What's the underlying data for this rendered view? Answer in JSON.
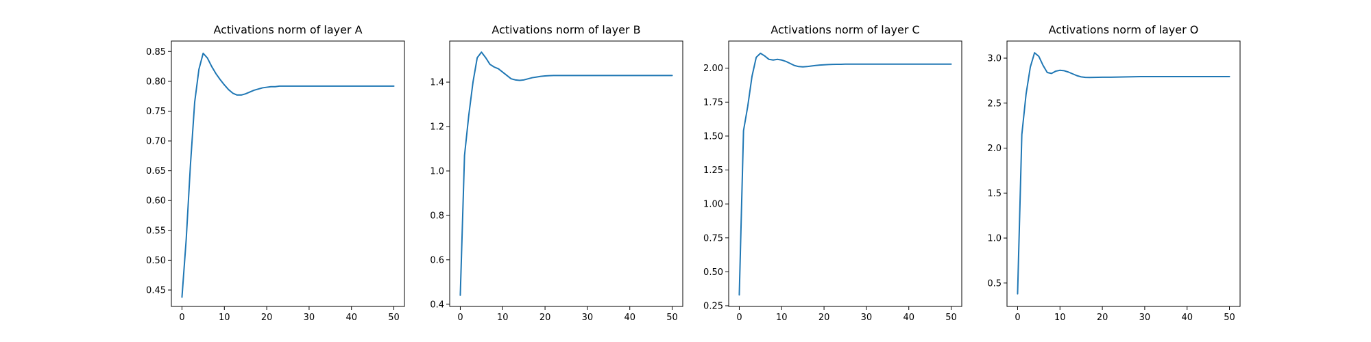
{
  "colors": {
    "line": "#1f77b4"
  },
  "chart_data": [
    {
      "type": "line",
      "title": "Activations norm of layer A",
      "xlabel": "",
      "ylabel": "",
      "xlim": [
        -2.5,
        52.5
      ],
      "ylim": [
        0.4225,
        0.8675
      ],
      "xticks": [
        0,
        10,
        20,
        30,
        40,
        50
      ],
      "xtick_labels": [
        "0",
        "10",
        "20",
        "30",
        "40",
        "50"
      ],
      "yticks": [
        0.45,
        0.5,
        0.55,
        0.6,
        0.65,
        0.7,
        0.75,
        0.8,
        0.85
      ],
      "ytick_labels": [
        "0.45",
        "0.50",
        "0.55",
        "0.60",
        "0.65",
        "0.70",
        "0.75",
        "0.80",
        "0.85"
      ],
      "grid": false,
      "series": [
        {
          "x": [
            0,
            1,
            2,
            3,
            4,
            5,
            6,
            7,
            8,
            9,
            10,
            11,
            12,
            13,
            14,
            15,
            16,
            17,
            18,
            19,
            20,
            21,
            22,
            23,
            24,
            25,
            26,
            27,
            28,
            29,
            30,
            31,
            32,
            33,
            34,
            35,
            36,
            37,
            38,
            39,
            40,
            41,
            42,
            43,
            44,
            45,
            46,
            47,
            48,
            49,
            50
          ],
          "values": [
            0.438,
            0.535,
            0.66,
            0.765,
            0.82,
            0.847,
            0.839,
            0.825,
            0.813,
            0.803,
            0.794,
            0.786,
            0.78,
            0.777,
            0.777,
            0.779,
            0.782,
            0.785,
            0.787,
            0.789,
            0.79,
            0.791,
            0.791,
            0.792,
            0.792,
            0.792,
            0.792,
            0.792,
            0.792,
            0.792,
            0.792,
            0.792,
            0.792,
            0.792,
            0.792,
            0.792,
            0.792,
            0.792,
            0.792,
            0.792,
            0.792,
            0.792,
            0.792,
            0.792,
            0.792,
            0.792,
            0.792,
            0.792,
            0.792,
            0.792,
            0.792
          ]
        }
      ]
    },
    {
      "type": "line",
      "title": "Activations norm of layer B",
      "xlabel": "",
      "ylabel": "",
      "xlim": [
        -2.5,
        52.5
      ],
      "ylim": [
        0.39,
        1.585
      ],
      "xticks": [
        0,
        10,
        20,
        30,
        40,
        50
      ],
      "xtick_labels": [
        "0",
        "10",
        "20",
        "30",
        "40",
        "50"
      ],
      "yticks": [
        0.4,
        0.6,
        0.8,
        1.0,
        1.2,
        1.4
      ],
      "ytick_labels": [
        "0.4",
        "0.6",
        "0.8",
        "1.0",
        "1.2",
        "1.4"
      ],
      "grid": false,
      "series": [
        {
          "x": [
            0,
            1,
            2,
            3,
            4,
            5,
            6,
            7,
            8,
            9,
            10,
            11,
            12,
            13,
            14,
            15,
            16,
            17,
            18,
            19,
            20,
            21,
            22,
            23,
            24,
            25,
            26,
            27,
            28,
            29,
            30,
            31,
            32,
            33,
            34,
            35,
            36,
            37,
            38,
            39,
            40,
            41,
            42,
            43,
            44,
            45,
            46,
            47,
            48,
            49,
            50
          ],
          "values": [
            0.44,
            1.07,
            1.25,
            1.4,
            1.51,
            1.535,
            1.51,
            1.48,
            1.468,
            1.46,
            1.445,
            1.43,
            1.415,
            1.41,
            1.408,
            1.41,
            1.415,
            1.42,
            1.423,
            1.426,
            1.428,
            1.429,
            1.43,
            1.43,
            1.43,
            1.43,
            1.43,
            1.43,
            1.43,
            1.43,
            1.43,
            1.43,
            1.43,
            1.43,
            1.43,
            1.43,
            1.43,
            1.43,
            1.43,
            1.43,
            1.43,
            1.43,
            1.43,
            1.43,
            1.43,
            1.43,
            1.43,
            1.43,
            1.43,
            1.43,
            1.43
          ]
        }
      ]
    },
    {
      "type": "line",
      "title": "Activations norm of layer C",
      "xlabel": "",
      "ylabel": "",
      "xlim": [
        -2.5,
        52.5
      ],
      "ylim": [
        0.245,
        2.2
      ],
      "xticks": [
        0,
        10,
        20,
        30,
        40,
        50
      ],
      "xtick_labels": [
        "0",
        "10",
        "20",
        "30",
        "40",
        "50"
      ],
      "yticks": [
        0.25,
        0.5,
        0.75,
        1.0,
        1.25,
        1.5,
        1.75,
        2.0
      ],
      "ytick_labels": [
        "0.25",
        "0.50",
        "0.75",
        "1.00",
        "1.25",
        "1.50",
        "1.75",
        "2.00"
      ],
      "grid": false,
      "series": [
        {
          "x": [
            0,
            1,
            2,
            3,
            4,
            5,
            6,
            7,
            8,
            9,
            10,
            11,
            12,
            13,
            14,
            15,
            16,
            17,
            18,
            19,
            20,
            21,
            22,
            23,
            24,
            25,
            26,
            27,
            28,
            29,
            30,
            31,
            32,
            33,
            34,
            35,
            36,
            37,
            38,
            39,
            40,
            41,
            42,
            43,
            44,
            45,
            46,
            47,
            48,
            49,
            50
          ],
          "values": [
            0.33,
            1.54,
            1.72,
            1.94,
            2.08,
            2.11,
            2.09,
            2.065,
            2.06,
            2.065,
            2.06,
            2.05,
            2.035,
            2.02,
            2.012,
            2.01,
            2.012,
            2.016,
            2.02,
            2.023,
            2.025,
            2.027,
            2.028,
            2.029,
            2.029,
            2.03,
            2.03,
            2.03,
            2.03,
            2.03,
            2.03,
            2.03,
            2.03,
            2.03,
            2.03,
            2.03,
            2.03,
            2.03,
            2.03,
            2.03,
            2.03,
            2.03,
            2.03,
            2.03,
            2.03,
            2.03,
            2.03,
            2.03,
            2.03,
            2.03,
            2.03
          ]
        }
      ]
    },
    {
      "type": "line",
      "title": "Activations norm of layer O",
      "xlabel": "",
      "ylabel": "",
      "xlim": [
        -2.5,
        52.5
      ],
      "ylim": [
        0.24,
        3.19
      ],
      "xticks": [
        0,
        10,
        20,
        30,
        40,
        50
      ],
      "xtick_labels": [
        "0",
        "10",
        "20",
        "30",
        "40",
        "50"
      ],
      "yticks": [
        0.5,
        1.0,
        1.5,
        2.0,
        2.5,
        3.0
      ],
      "ytick_labels": [
        "0.5",
        "1.0",
        "1.5",
        "2.0",
        "2.5",
        "3.0"
      ],
      "grid": false,
      "series": [
        {
          "x": [
            0,
            1,
            2,
            3,
            4,
            5,
            6,
            7,
            8,
            9,
            10,
            11,
            12,
            13,
            14,
            15,
            16,
            17,
            18,
            19,
            20,
            21,
            22,
            23,
            24,
            25,
            26,
            27,
            28,
            29,
            30,
            31,
            32,
            33,
            34,
            35,
            36,
            37,
            38,
            39,
            40,
            41,
            42,
            43,
            44,
            45,
            46,
            47,
            48,
            49,
            50
          ],
          "values": [
            0.38,
            2.15,
            2.6,
            2.9,
            3.06,
            3.02,
            2.92,
            2.84,
            2.83,
            2.855,
            2.865,
            2.86,
            2.845,
            2.825,
            2.805,
            2.792,
            2.786,
            2.785,
            2.786,
            2.787,
            2.788,
            2.788,
            2.788,
            2.789,
            2.79,
            2.791,
            2.792,
            2.793,
            2.794,
            2.795,
            2.795,
            2.795,
            2.795,
            2.795,
            2.795,
            2.795,
            2.795,
            2.795,
            2.795,
            2.795,
            2.795,
            2.795,
            2.795,
            2.795,
            2.795,
            2.795,
            2.795,
            2.795,
            2.795,
            2.795,
            2.795
          ]
        }
      ]
    }
  ]
}
